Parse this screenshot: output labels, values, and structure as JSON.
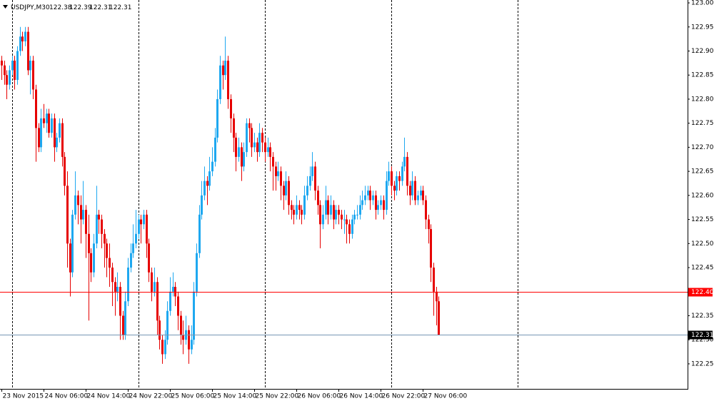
{
  "chart_data": {
    "type": "candlestick",
    "title": "USDJPY,M30",
    "up_color": "#1ea8f0",
    "down_color": "#e60000",
    "xlim": [
      -0.5,
      260.5
    ],
    "ylim": [
      122.198,
      123.006
    ],
    "yticks": [
      122.25,
      {
        "value": 122.3,
        "label": "122.30"
      },
      122.35,
      {
        "value": 122.4,
        "label": "122.40"
      },
      122.45,
      {
        "value": 122.5,
        "label": "122.50"
      },
      122.55,
      {
        "value": 122.6,
        "label": "122.60"
      },
      122.65,
      {
        "value": 122.7,
        "label": "122.70"
      },
      122.75,
      {
        "value": 122.8,
        "label": "122.80"
      },
      122.85,
      {
        "value": 122.9,
        "label": "122.90"
      },
      122.95,
      {
        "value": 123,
        "label": "123.00"
      }
    ],
    "xticks": [
      {
        "value": 0,
        "label": "23 Nov 2015"
      },
      {
        "value": 16,
        "label": "24 Nov 06:00"
      },
      {
        "value": 32,
        "label": "24 Nov 14:00"
      },
      {
        "value": 48,
        "label": "24 Nov 22:00"
      },
      {
        "value": 64,
        "label": "25 Nov 06:00"
      },
      {
        "value": 80,
        "label": "25 Nov 14:00"
      },
      {
        "value": 96,
        "label": "25 Nov 22:00"
      },
      {
        "value": 112,
        "label": "26 Nov 06:00"
      },
      {
        "value": 128,
        "label": "26 Nov 14:00"
      },
      {
        "value": 144,
        "label": "26 Nov 22:00"
      },
      {
        "value": 160,
        "label": "27 Nov 06:00"
      }
    ],
    "period_separators": [
      4,
      52,
      100,
      148,
      196
    ],
    "price_lines": [
      {
        "value": 122.4,
        "label": "122.40",
        "color": "#ff0000",
        "label_bg": "#ff0000"
      },
      {
        "value": 122.31,
        "label": "122.31",
        "color": "#7796b4",
        "label_bg": "#000000"
      }
    ],
    "candles": [
      [
        122.88,
        122.89,
        122.84,
        122.87
      ],
      [
        122.87,
        122.88,
        122.83,
        122.85
      ],
      [
        122.85,
        122.86,
        122.8,
        122.83
      ],
      [
        122.83,
        122.87,
        122.82,
        122.86
      ],
      [
        122.86,
        122.89,
        122.85,
        122.88
      ],
      [
        122.88,
        122.89,
        122.82,
        122.84
      ],
      [
        122.84,
        122.91,
        122.83,
        122.9
      ],
      [
        122.9,
        122.95,
        122.89,
        122.93
      ],
      [
        122.93,
        122.94,
        122.9,
        122.92
      ],
      [
        122.92,
        122.95,
        122.91,
        122.94
      ],
      [
        122.94,
        122.95,
        122.85,
        122.86
      ],
      [
        122.86,
        122.89,
        122.81,
        122.88
      ],
      [
        122.88,
        122.89,
        122.8,
        122.82
      ],
      [
        122.82,
        122.83,
        122.67,
        122.74
      ],
      [
        122.74,
        122.75,
        122.69,
        122.7
      ],
      [
        122.7,
        122.78,
        122.69,
        122.76
      ],
      [
        122.76,
        122.79,
        122.74,
        122.75
      ],
      [
        122.75,
        122.78,
        122.73,
        122.77
      ],
      [
        122.77,
        122.78,
        122.72,
        122.73
      ],
      [
        122.73,
        122.77,
        122.72,
        122.76
      ],
      [
        122.76,
        122.77,
        122.67,
        122.7
      ],
      [
        122.7,
        122.73,
        122.69,
        122.72
      ],
      [
        122.72,
        122.76,
        122.71,
        122.75
      ],
      [
        122.75,
        122.76,
        122.66,
        122.68
      ],
      [
        122.68,
        122.69,
        122.6,
        122.62
      ],
      [
        122.62,
        122.65,
        122.45,
        122.5
      ],
      [
        122.5,
        122.51,
        122.39,
        122.44
      ],
      [
        122.44,
        122.57,
        122.43,
        122.56
      ],
      [
        122.56,
        122.65,
        122.55,
        122.6
      ],
      [
        122.6,
        122.61,
        122.54,
        122.58
      ],
      [
        122.58,
        122.6,
        122.5,
        122.55
      ],
      [
        122.55,
        122.63,
        122.54,
        122.57
      ],
      [
        122.57,
        122.58,
        122.47,
        122.52
      ],
      [
        122.52,
        122.56,
        122.34,
        122.48
      ],
      [
        122.48,
        122.49,
        122.42,
        122.44
      ],
      [
        122.44,
        122.52,
        122.43,
        122.5
      ],
      [
        122.5,
        122.62,
        122.49,
        122.56
      ],
      [
        122.56,
        122.57,
        122.52,
        122.55
      ],
      [
        122.55,
        122.56,
        122.49,
        122.52
      ],
      [
        122.52,
        122.53,
        122.45,
        122.5
      ],
      [
        122.5,
        122.51,
        122.43,
        122.47
      ],
      [
        122.47,
        122.5,
        122.41,
        122.45
      ],
      [
        122.45,
        122.46,
        122.37,
        122.42
      ],
      [
        122.42,
        122.43,
        122.35,
        122.4
      ],
      [
        122.4,
        122.44,
        122.38,
        122.41
      ],
      [
        122.41,
        122.42,
        122.3,
        122.35
      ],
      [
        122.35,
        122.36,
        122.3,
        122.31
      ],
      [
        122.31,
        122.4,
        122.3,
        122.38
      ],
      [
        122.38,
        122.47,
        122.37,
        122.45
      ],
      [
        122.45,
        122.5,
        122.44,
        122.48
      ],
      [
        122.48,
        122.54,
        122.47,
        122.5
      ],
      [
        122.5,
        122.57,
        122.49,
        122.52
      ],
      [
        122.52,
        122.56,
        122.51,
        122.55
      ],
      [
        122.55,
        122.56,
        122.5,
        122.54
      ],
      [
        122.54,
        122.57,
        122.53,
        122.56
      ],
      [
        122.56,
        122.57,
        122.47,
        122.5
      ],
      [
        122.5,
        122.51,
        122.42,
        122.44
      ],
      [
        122.44,
        122.45,
        122.38,
        122.4
      ],
      [
        122.4,
        122.45,
        122.39,
        122.42
      ],
      [
        122.42,
        122.43,
        122.31,
        122.34
      ],
      [
        122.34,
        122.35,
        122.28,
        122.3
      ],
      [
        122.3,
        122.31,
        122.25,
        122.27
      ],
      [
        122.27,
        122.32,
        122.26,
        122.3
      ],
      [
        122.3,
        122.38,
        122.29,
        122.36
      ],
      [
        122.36,
        122.43,
        122.35,
        122.4
      ],
      [
        122.4,
        122.44,
        122.39,
        122.41
      ],
      [
        122.41,
        122.42,
        122.37,
        122.39
      ],
      [
        122.39,
        122.4,
        122.32,
        122.35
      ],
      [
        122.35,
        122.36,
        122.29,
        122.31
      ],
      [
        122.31,
        122.34,
        122.27,
        122.3
      ],
      [
        122.3,
        122.35,
        122.29,
        122.32
      ],
      [
        122.32,
        122.33,
        122.25,
        122.28
      ],
      [
        122.28,
        122.33,
        122.27,
        122.3
      ],
      [
        122.3,
        122.42,
        122.29,
        122.4
      ],
      [
        122.4,
        122.5,
        122.39,
        122.48
      ],
      [
        122.48,
        122.58,
        122.47,
        122.56
      ],
      [
        122.56,
        122.63,
        122.55,
        122.6
      ],
      [
        122.6,
        122.66,
        122.59,
        122.63
      ],
      [
        122.63,
        122.64,
        122.58,
        122.62
      ],
      [
        122.62,
        122.68,
        122.61,
        122.65
      ],
      [
        122.65,
        122.7,
        122.64,
        122.67
      ],
      [
        122.67,
        122.74,
        122.66,
        122.72
      ],
      [
        122.72,
        122.82,
        122.71,
        122.8
      ],
      [
        122.8,
        122.89,
        122.79,
        122.87
      ],
      [
        122.87,
        122.88,
        122.82,
        122.85
      ],
      [
        122.85,
        122.93,
        122.84,
        122.88
      ],
      [
        122.88,
        122.89,
        122.78,
        122.8
      ],
      [
        122.8,
        122.81,
        122.73,
        122.76
      ],
      [
        122.76,
        122.77,
        122.69,
        122.72
      ],
      [
        122.72,
        122.73,
        122.65,
        122.68
      ],
      [
        122.68,
        122.72,
        122.67,
        122.7
      ],
      [
        122.7,
        122.71,
        122.63,
        122.66
      ],
      [
        122.66,
        122.71,
        122.65,
        122.69
      ],
      [
        122.69,
        122.76,
        122.68,
        122.75
      ],
      [
        122.75,
        122.76,
        122.71,
        122.74
      ],
      [
        122.74,
        122.75,
        122.68,
        122.7
      ],
      [
        122.7,
        122.73,
        122.69,
        122.71
      ],
      [
        122.71,
        122.72,
        122.67,
        122.69
      ],
      [
        122.69,
        122.75,
        122.68,
        122.73
      ],
      [
        122.73,
        122.74,
        122.69,
        122.71
      ],
      [
        122.71,
        122.72,
        122.67,
        122.69
      ],
      [
        122.69,
        122.72,
        122.68,
        122.7
      ],
      [
        122.7,
        122.71,
        122.65,
        122.68
      ],
      [
        122.68,
        122.69,
        122.61,
        122.66
      ],
      [
        122.66,
        122.67,
        122.61,
        122.64
      ],
      [
        122.64,
        122.67,
        122.63,
        122.65
      ],
      [
        122.65,
        122.66,
        122.59,
        122.62
      ],
      [
        122.62,
        122.63,
        122.57,
        122.6
      ],
      [
        122.6,
        122.65,
        122.59,
        122.63
      ],
      [
        122.63,
        122.64,
        122.56,
        122.58
      ],
      [
        122.58,
        122.59,
        122.55,
        122.57
      ],
      [
        122.57,
        122.58,
        122.54,
        122.56
      ],
      [
        122.56,
        122.6,
        122.55,
        122.58
      ],
      [
        122.58,
        122.59,
        122.55,
        122.57
      ],
      [
        122.57,
        122.58,
        122.54,
        122.56
      ],
      [
        122.56,
        122.62,
        122.55,
        122.6
      ],
      [
        122.6,
        122.64,
        122.59,
        122.62
      ],
      [
        122.62,
        122.66,
        122.61,
        122.64
      ],
      [
        122.64,
        122.69,
        122.63,
        122.66
      ],
      [
        122.66,
        122.67,
        122.59,
        122.61
      ],
      [
        122.61,
        122.62,
        122.56,
        122.58
      ],
      [
        122.58,
        122.59,
        122.49,
        122.54
      ],
      [
        122.54,
        122.58,
        122.53,
        122.56
      ],
      [
        122.56,
        122.62,
        122.55,
        122.59
      ],
      [
        122.59,
        122.6,
        122.54,
        122.56
      ],
      [
        122.56,
        122.6,
        122.55,
        122.58
      ],
      [
        122.58,
        122.59,
        122.53,
        122.55
      ],
      [
        122.55,
        122.58,
        122.54,
        122.57
      ],
      [
        122.57,
        122.58,
        122.54,
        122.56
      ],
      [
        122.56,
        122.57,
        122.53,
        122.55
      ],
      [
        122.55,
        122.57,
        122.52,
        122.55
      ],
      [
        122.55,
        122.56,
        122.5,
        122.54
      ],
      [
        122.54,
        122.55,
        122.5,
        122.52
      ],
      [
        122.52,
        122.56,
        122.51,
        122.55
      ],
      [
        122.55,
        122.57,
        122.54,
        122.56
      ],
      [
        122.56,
        122.58,
        122.55,
        122.56
      ],
      [
        122.56,
        122.6,
        122.55,
        122.58
      ],
      [
        122.58,
        122.61,
        122.57,
        122.59
      ],
      [
        122.59,
        122.62,
        122.58,
        122.6
      ],
      [
        122.6,
        122.62,
        122.59,
        122.61
      ],
      [
        122.61,
        122.62,
        122.57,
        122.59
      ],
      [
        122.59,
        122.61,
        122.58,
        122.6
      ],
      [
        122.6,
        122.61,
        122.55,
        122.57
      ],
      [
        122.57,
        122.59,
        122.56,
        122.58
      ],
      [
        122.58,
        122.6,
        122.57,
        122.59
      ],
      [
        122.59,
        122.6,
        122.55,
        122.57
      ],
      [
        122.57,
        122.65,
        122.56,
        122.63
      ],
      [
        122.63,
        122.67,
        122.62,
        122.65
      ],
      [
        122.65,
        122.66,
        122.6,
        122.62
      ],
      [
        122.62,
        122.63,
        122.59,
        122.61
      ],
      [
        122.61,
        122.65,
        122.6,
        122.64
      ],
      [
        122.64,
        122.65,
        122.61,
        122.63
      ],
      [
        122.63,
        122.67,
        122.62,
        122.66
      ],
      [
        122.66,
        122.72,
        122.65,
        122.68
      ],
      [
        122.68,
        122.69,
        122.6,
        122.62
      ],
      [
        122.62,
        122.63,
        122.58,
        122.6
      ],
      [
        122.6,
        122.65,
        122.59,
        122.63
      ],
      [
        122.63,
        122.64,
        122.58,
        122.59
      ],
      [
        122.59,
        122.61,
        122.58,
        122.6
      ],
      [
        122.6,
        122.62,
        122.59,
        122.61
      ],
      [
        122.61,
        122.62,
        122.58,
        122.59
      ],
      [
        122.59,
        122.6,
        122.53,
        122.55
      ],
      [
        122.55,
        122.56,
        122.5,
        122.53
      ],
      [
        122.53,
        122.54,
        122.42,
        122.45
      ],
      [
        122.45,
        122.46,
        122.35,
        122.4
      ],
      [
        122.4,
        122.41,
        122.33,
        122.38
      ],
      [
        122.38,
        122.39,
        122.31,
        122.31
      ]
    ]
  }
}
